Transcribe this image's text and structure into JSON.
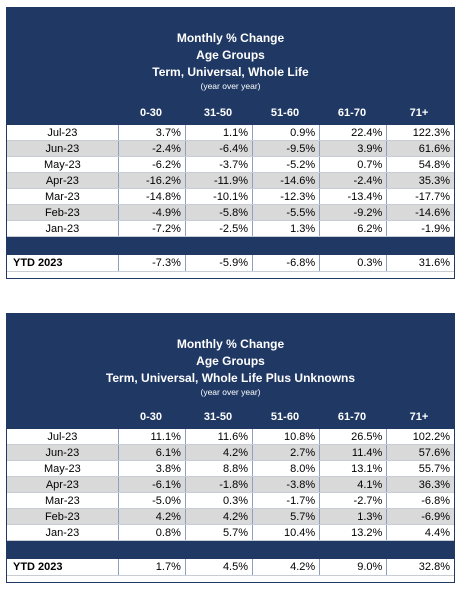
{
  "tables": [
    {
      "title1": "Monthly % Change",
      "title2": "Age Groups",
      "title3": "Term, Universal, Whole Life",
      "subnote": "(year over year)",
      "columns": [
        "0-30",
        "31-50",
        "51-60",
        "61-70",
        "71+"
      ],
      "rows": [
        {
          "label": "Jul-23",
          "values": [
            "3.7%",
            "1.1%",
            "0.9%",
            "22.4%",
            "122.3%"
          ]
        },
        {
          "label": "Jun-23",
          "values": [
            "-2.4%",
            "-6.4%",
            "-9.5%",
            "3.9%",
            "61.6%"
          ]
        },
        {
          "label": "May-23",
          "values": [
            "-6.2%",
            "-3.7%",
            "-5.2%",
            "0.7%",
            "54.8%"
          ]
        },
        {
          "label": "Apr-23",
          "values": [
            "-16.2%",
            "-11.9%",
            "-14.6%",
            "-2.4%",
            "35.3%"
          ]
        },
        {
          "label": "Mar-23",
          "values": [
            "-14.8%",
            "-10.1%",
            "-12.3%",
            "-13.4%",
            "-17.7%"
          ]
        },
        {
          "label": "Feb-23",
          "values": [
            "-4.9%",
            "-5.8%",
            "-5.5%",
            "-9.2%",
            "-14.6%"
          ]
        },
        {
          "label": "Jan-23",
          "values": [
            "-7.2%",
            "-2.5%",
            "1.3%",
            "6.2%",
            "-1.9%"
          ]
        }
      ],
      "ytd": {
        "label": "YTD 2023",
        "values": [
          "-7.3%",
          "-5.9%",
          "-6.8%",
          "0.3%",
          "31.6%"
        ]
      }
    },
    {
      "title1": "Monthly % Change",
      "title2": "Age Groups",
      "title3": "Term, Universal, Whole Life Plus Unknowns",
      "subnote": "(year over year)",
      "columns": [
        "0-30",
        "31-50",
        "51-60",
        "61-70",
        "71+"
      ],
      "rows": [
        {
          "label": "Jul-23",
          "values": [
            "11.1%",
            "11.6%",
            "10.8%",
            "26.5%",
            "102.2%"
          ]
        },
        {
          "label": "Jun-23",
          "values": [
            "6.1%",
            "4.2%",
            "2.7%",
            "11.4%",
            "57.6%"
          ]
        },
        {
          "label": "May-23",
          "values": [
            "3.8%",
            "8.8%",
            "8.0%",
            "13.1%",
            "55.7%"
          ]
        },
        {
          "label": "Apr-23",
          "values": [
            "-6.1%",
            "-1.8%",
            "-3.8%",
            "4.1%",
            "36.3%"
          ]
        },
        {
          "label": "Mar-23",
          "values": [
            "-5.0%",
            "0.3%",
            "-1.7%",
            "-2.7%",
            "-6.8%"
          ]
        },
        {
          "label": "Feb-23",
          "values": [
            "4.2%",
            "4.2%",
            "5.7%",
            "1.3%",
            "-6.9%"
          ]
        },
        {
          "label": "Jan-23",
          "values": [
            "0.8%",
            "5.7%",
            "10.4%",
            "13.2%",
            "4.4%"
          ]
        }
      ],
      "ytd": {
        "label": "YTD 2023",
        "values": [
          "1.7%",
          "4.5%",
          "4.2%",
          "9.0%",
          "32.8%"
        ]
      }
    }
  ]
}
